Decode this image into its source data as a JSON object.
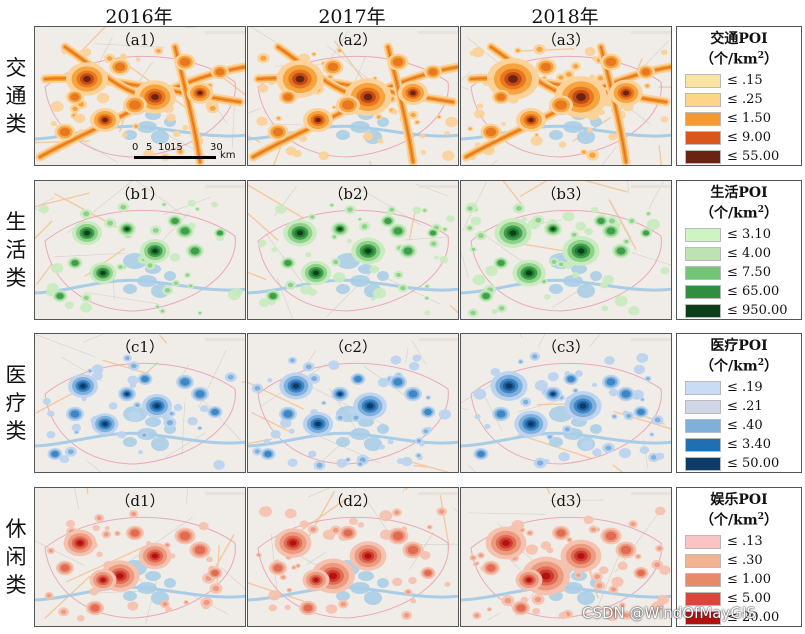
{
  "years": [
    "2016年",
    "2017年",
    "2018年"
  ],
  "rows": [
    {
      "category": "交通类",
      "panels": [
        "（a1）",
        "（a2）",
        "（a3）"
      ],
      "legend_title": "交通POI",
      "legend_unit_main": "（个/km",
      "legend_unit_sup": "2",
      "legend_unit_end": "）",
      "legend_items": [
        {
          "label": "≤ .15",
          "color": "#fbe3a6"
        },
        {
          "label": "≤ .25",
          "color": "#fdd589"
        },
        {
          "label": "≤ 1.50",
          "color": "#f39a36"
        },
        {
          "label": "≤ 9.00",
          "color": "#d9571b"
        },
        {
          "label": "≤ 55.00",
          "color": "#6a2411"
        }
      ],
      "palette": [
        "#fbd29a",
        "#f7a43e",
        "#e8781e",
        "#c44a14",
        "#6a2411"
      ]
    },
    {
      "category": "生活类",
      "panels": [
        "（b1）",
        "（b2）",
        "（b3）"
      ],
      "legend_title": "生活POI",
      "legend_unit_main": "（个/km",
      "legend_unit_sup": "2",
      "legend_unit_end": "）",
      "legend_items": [
        {
          "label": "≤ 3.10",
          "color": "#cdf5c2"
        },
        {
          "label": "≤ 4.00",
          "color": "#bde3b4"
        },
        {
          "label": "≤ 7.50",
          "color": "#74c476"
        },
        {
          "label": "≤ 65.00",
          "color": "#2f8f3e"
        },
        {
          "label": "≤ 950.00",
          "color": "#0a3f17"
        }
      ],
      "palette": [
        "#c8ebc0",
        "#8fd08a",
        "#3e9e4a",
        "#1f7a33",
        "#0a3f17"
      ]
    },
    {
      "category": "医疗类",
      "panels": [
        "（c1）",
        "（c2）",
        "（c3）"
      ],
      "legend_title": "医疗POI",
      "legend_unit_main": "（个/km",
      "legend_unit_sup": "2",
      "legend_unit_end": "）",
      "legend_items": [
        {
          "label": "≤ .19",
          "color": "#c8dcf5"
        },
        {
          "label": "≤ .21",
          "color": "#cfd6e8"
        },
        {
          "label": "≤ .40",
          "color": "#7fb0dc"
        },
        {
          "label": "≤ 3.40",
          "color": "#1f6fb2"
        },
        {
          "label": "≤ 50.00",
          "color": "#0d3a66"
        }
      ],
      "palette": [
        "#bcd4ef",
        "#7fb0dc",
        "#3d86c4",
        "#1f5f9e",
        "#0d3a66"
      ]
    },
    {
      "category": "休闲类",
      "panels": [
        "（d1）",
        "（d2）",
        "（d3）"
      ],
      "legend_title": "娱乐POI",
      "legend_unit_main": "（个/km",
      "legend_unit_sup": "2",
      "legend_unit_end": "）",
      "legend_items": [
        {
          "label": "≤ .13",
          "color": "#fbc4c4"
        },
        {
          "label": "≤ .30",
          "color": "#f2b48f"
        },
        {
          "label": "≤ 1.00",
          "color": "#e88a68"
        },
        {
          "label": "≤ 5.00",
          "color": "#d9473a"
        },
        {
          "label": "≤ 20.00",
          "color": "#b3110f"
        }
      ],
      "palette": [
        "#f5c2b0",
        "#ec9a80",
        "#e06a52",
        "#cc3a30",
        "#b3110f"
      ]
    }
  ],
  "scale_bar": {
    "ticks": [
      "0",
      "5",
      "10",
      "15",
      "30"
    ],
    "unit": "km"
  },
  "watermark": "CSDN @WindOfMayGIS"
}
